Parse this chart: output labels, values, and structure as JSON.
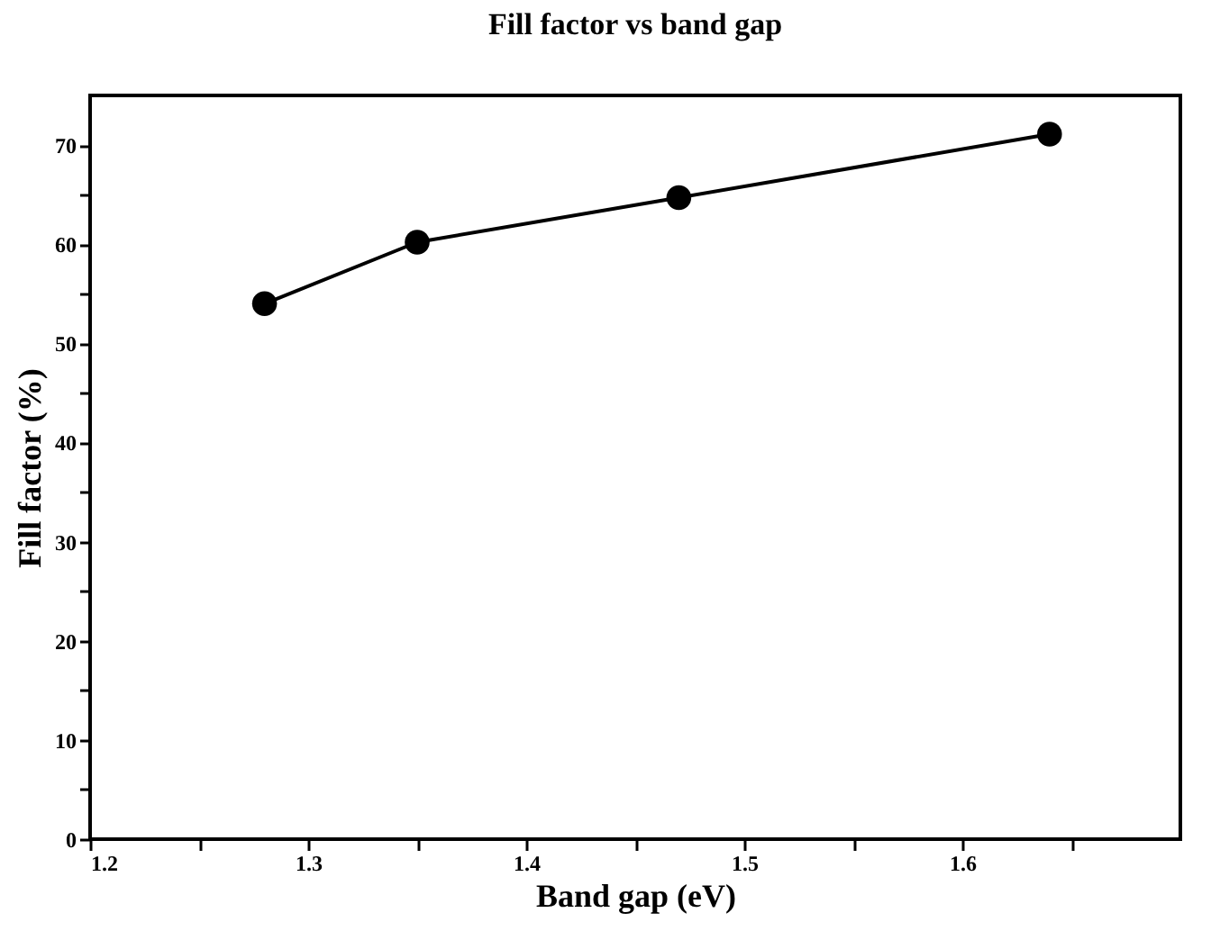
{
  "chart_data": {
    "type": "line",
    "title": "Fill factor vs band gap",
    "xlabel": "Band gap (eV)",
    "ylabel": "Fill factor (%)",
    "x": [
      1.28,
      1.35,
      1.47,
      1.64
    ],
    "series": [
      {
        "color": "#000000",
        "values": [
          54.0,
          60.2,
          64.7,
          71.1
        ]
      }
    ],
    "xlim": [
      1.2,
      1.7
    ],
    "xticks": [
      1.2,
      {
        "value": 1.25,
        "label": null
      },
      1.3,
      {
        "value": 1.35,
        "label": null
      },
      1.4,
      {
        "value": 1.45,
        "label": null
      },
      1.5,
      {
        "value": 1.55,
        "label": null
      },
      1.6,
      {
        "value": 1.65,
        "label": null
      }
    ],
    "ylim": [
      0,
      75
    ],
    "yticks": [
      0,
      {
        "value": 5,
        "label": null
      },
      10,
      {
        "value": 15,
        "label": null
      },
      20,
      {
        "value": 25,
        "label": null
      },
      30,
      {
        "value": 35,
        "label": null
      },
      40,
      {
        "value": 45,
        "label": null
      },
      50,
      {
        "value": 55,
        "label": null
      },
      60,
      {
        "value": 65,
        "label": null
      },
      70
    ],
    "marker": "circle",
    "line_style": "solid",
    "grid": false,
    "legend": false
  }
}
